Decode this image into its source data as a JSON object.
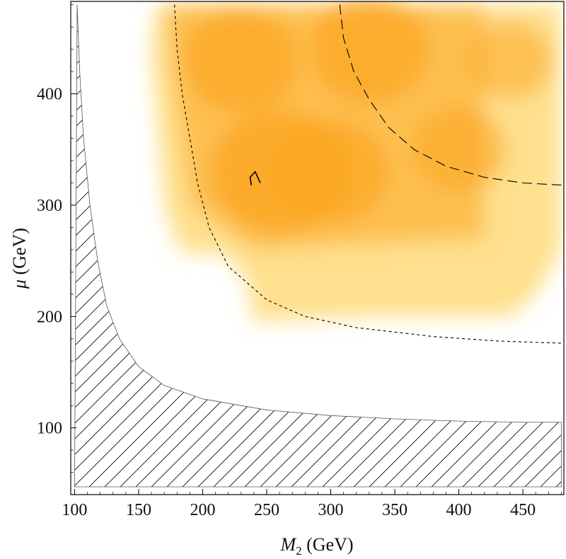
{
  "chart_data": {
    "type": "heatmap",
    "title": "",
    "xlabel": {
      "symbol": "M",
      "subscript": "2",
      "unit": " (GeV)"
    },
    "ylabel": {
      "symbol": "μ",
      "unit": " (GeV)"
    },
    "xlim": [
      97,
      482
    ],
    "ylim": [
      40,
      483
    ],
    "xticks": [
      100,
      150,
      200,
      250,
      300,
      350,
      400,
      450
    ],
    "yticks": [
      100,
      200,
      300,
      400
    ],
    "colors": {
      "hot": "#fba521",
      "mid": "#fdc04f",
      "cool": "#fee08e",
      "frame": "#000000",
      "hatch": "#000000"
    },
    "excluded_region": {
      "style": "hatched",
      "boundary": [
        [
          102,
          480
        ],
        [
          104,
          420
        ],
        [
          107,
          360
        ],
        [
          112,
          300
        ],
        [
          118,
          250
        ],
        [
          125,
          210
        ],
        [
          135,
          180
        ],
        [
          150,
          155
        ],
        [
          170,
          138
        ],
        [
          200,
          126
        ],
        [
          250,
          116
        ],
        [
          300,
          111
        ],
        [
          350,
          108
        ],
        [
          400,
          106
        ],
        [
          450,
          105
        ],
        [
          480,
          105
        ]
      ],
      "bottom": 47
    },
    "heatmap_blobs": [
      {
        "x": 260,
        "y": 330,
        "intensity": 0.95
      },
      {
        "x": 330,
        "y": 440,
        "intensity": 0.75
      },
      {
        "x": 230,
        "y": 430,
        "intensity": 0.7
      },
      {
        "x": 300,
        "y": 330,
        "intensity": 0.7
      },
      {
        "x": 400,
        "y": 350,
        "intensity": 0.45
      },
      {
        "x": 440,
        "y": 430,
        "intensity": 0.35
      }
    ],
    "contours": [
      {
        "style": "short-dash",
        "points": [
          [
            178,
            480
          ],
          [
            180,
            440
          ],
          [
            184,
            400
          ],
          [
            190,
            360
          ],
          [
            196,
            320
          ],
          [
            205,
            280
          ],
          [
            220,
            245
          ],
          [
            250,
            215
          ],
          [
            280,
            200
          ],
          [
            320,
            190
          ],
          [
            380,
            182
          ],
          [
            430,
            178
          ],
          [
            480,
            176
          ]
        ]
      },
      {
        "style": "long-dash",
        "points": [
          [
            307,
            480
          ],
          [
            310,
            450
          ],
          [
            318,
            420
          ],
          [
            330,
            395
          ],
          [
            345,
            370
          ],
          [
            365,
            350
          ],
          [
            390,
            335
          ],
          [
            420,
            325
          ],
          [
            450,
            320
          ],
          [
            480,
            318
          ]
        ]
      },
      {
        "style": "solid",
        "points": [
          [
            238,
            318
          ],
          [
            237,
            325
          ],
          [
            241,
            330
          ],
          [
            245,
            320
          ]
        ]
      }
    ]
  }
}
